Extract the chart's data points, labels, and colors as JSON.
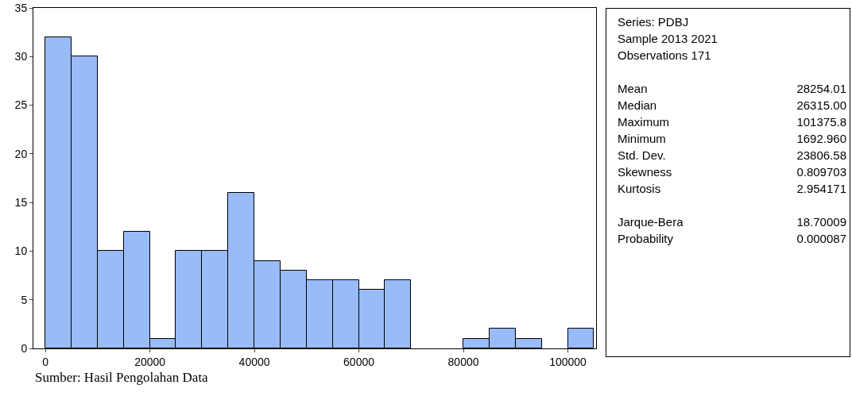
{
  "chart_data": [
    {
      "type": "histogram",
      "bins": [
        0,
        5000,
        10000,
        15000,
        20000,
        25000,
        30000,
        35000,
        40000,
        45000,
        50000,
        55000,
        60000,
        65000,
        70000,
        75000,
        80000,
        85000,
        90000,
        95000,
        100000,
        105000
      ],
      "values": [
        32,
        30,
        10,
        12,
        1,
        10,
        10,
        16,
        9,
        8,
        7,
        7,
        6,
        7,
        0,
        0,
        1,
        2,
        1,
        0,
        2
      ],
      "color": "#99bbf7",
      "xlim": [
        -2300,
        105400
      ],
      "xticks": [
        0,
        20000,
        40000,
        60000,
        80000,
        100000
      ],
      "ylim": [
        0,
        35
      ],
      "yticks": [
        0,
        5,
        10,
        15,
        20,
        25,
        30,
        35
      ],
      "grid": false,
      "annotations": [
        "Sumber: Hasil Pengolahan Data"
      ]
    },
    {
      "type": "other",
      "annotations": [
        "Series: PDBJ",
        "Sample 2013 2021",
        "Observations 171"
      ],
      "categories": [
        "Mean",
        "Median",
        "Maximum",
        "Minimum",
        "Std. Dev.",
        "Skewness",
        "Kurtosis",
        null,
        "Jarque-Bera",
        "Probability"
      ],
      "value_labels": [
        "28254.01",
        "26315.00",
        "101375.8",
        "1692.960",
        "23806.58",
        "0.809703",
        "2.954171",
        null,
        "18.70009",
        "0.000087"
      ]
    }
  ]
}
